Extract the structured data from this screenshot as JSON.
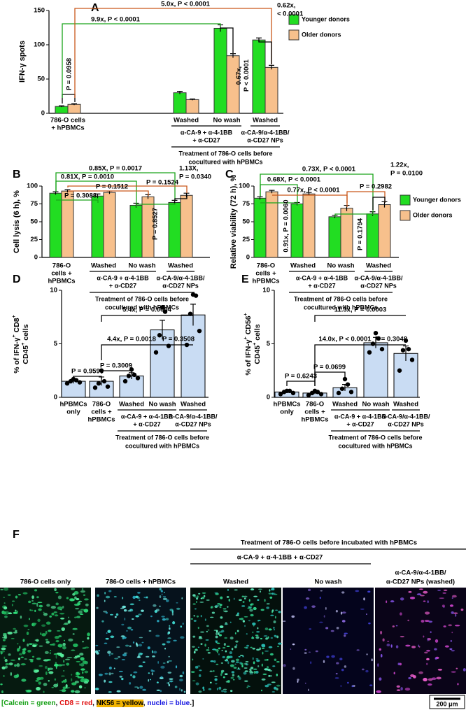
{
  "chart_data": [
    {
      "type": "bar",
      "panel": "A",
      "ylabel": "IFN-γ spots",
      "ylim": [
        0,
        150
      ],
      "yticks": [
        0,
        50,
        100,
        150
      ],
      "x_labels": [
        [
          "786-O cells",
          "+ hPBMCs"
        ],
        [
          "Washed"
        ],
        [
          "No wash"
        ],
        [
          "Washed"
        ]
      ],
      "groups": [
        [
          "α-CA-9 + α-4-1BB",
          "+ α-CD27"
        ],
        [
          "α-CA-9/α-4-1BB/",
          "α-CD27 NPs"
        ]
      ],
      "x_title": [
        "Treatment of 786-O cells before",
        "cocultured with hPBMCs"
      ],
      "legend": true,
      "series": [
        {
          "name": "Younger donors",
          "color": "#22dd22",
          "values": [
            10,
            30,
            124,
            107
          ],
          "errors": [
            1,
            2,
            5,
            3
          ]
        },
        {
          "name": "Older donors",
          "color": "#f7c08c",
          "values": [
            13,
            20,
            84,
            67
          ],
          "errors": [
            1,
            1,
            3,
            3
          ]
        }
      ],
      "annotations": [
        {
          "text": [
            "P = 0.0958"
          ],
          "color": "#000000"
        },
        {
          "text": [
            "9.9x, P < 0.0001"
          ],
          "color": "#1aa51a"
        },
        {
          "text": [
            "5.0x, P < 0.0001"
          ],
          "color": "#c9571a"
        },
        {
          "text": [
            "0.67x,",
            "P < 0.0001"
          ],
          "color": "#000000"
        },
        {
          "text": [
            "0.62x,",
            "< 0.0001"
          ],
          "color": "#000000"
        }
      ]
    },
    {
      "type": "bar",
      "panel": "B",
      "ylabel": "Cell lysis (6 h), %",
      "ylim": [
        0,
        100
      ],
      "yticks": [
        0,
        25,
        50,
        75,
        100
      ],
      "x_labels": [
        [
          "786-O",
          "cells +",
          "hPBMCs"
        ],
        [
          "Washed"
        ],
        [
          "No wash"
        ],
        [
          "Washed"
        ]
      ],
      "groups": [
        [
          "α-CA-9 + α-4-1BB",
          "+ α-CD27"
        ],
        [
          "α-CA-9/α-4-1BB/",
          "α-CD27 NPs"
        ]
      ],
      "x_title": [
        "Treatment of 786-O cells before",
        "cocultured with hPBMCs"
      ],
      "legend": false,
      "series": [
        {
          "color": "#22dd22",
          "values": [
            90,
            86,
            73,
            77
          ],
          "errors": [
            2,
            3,
            3,
            3
          ]
        },
        {
          "color": "#f7c08c",
          "values": [
            93,
            91,
            85,
            87
          ],
          "errors": [
            2,
            2,
            3,
            3
          ]
        }
      ],
      "annotations": [
        {
          "text": [
            "0.85X, P = 0.0017"
          ],
          "color": "#1aa51a"
        },
        {
          "text": [
            "0.81X, P = 0.0010"
          ],
          "color": "#1aa51a"
        },
        {
          "text": [
            "P = 0.1524"
          ],
          "color": "#c9571a"
        },
        {
          "text": [
            "P = 0.1512"
          ],
          "color": "#c9571a"
        },
        {
          "text": [
            "P = 0.3088"
          ],
          "color": "#1aa51a"
        },
        {
          "text": [
            "1.13X,",
            "P = 0.0340"
          ],
          "color": "#000000"
        },
        {
          "text": [
            "P = 0.8527"
          ],
          "color": "#1aa51a"
        }
      ]
    },
    {
      "type": "bar",
      "panel": "C",
      "ylabel": "Relative viability (72 h), %",
      "ylim": [
        0,
        100
      ],
      "yticks": [
        0,
        25,
        50,
        75,
        100
      ],
      "x_labels": [
        [
          "786-O",
          "cells +",
          "hPBMCs"
        ],
        [
          "Washed"
        ],
        [
          "No wash"
        ],
        [
          "Washed"
        ]
      ],
      "groups": [
        [
          "α-CA-9 + α-4-1BB",
          "+ α-CD27"
        ],
        [
          "α-CA-9/α-4-1BB/",
          "α-CD27 NPs"
        ]
      ],
      "x_title": [
        "Treatment of 786-O cells before",
        "cocultured with hPBMCs"
      ],
      "legend": true,
      "series": [
        {
          "name": "Younger donors",
          "color": "#22dd22",
          "values": [
            83,
            75,
            57,
            61
          ],
          "errors": [
            2,
            2,
            2,
            3
          ]
        },
        {
          "name": "Older donors",
          "color": "#f7c08c",
          "values": [
            92,
            89,
            69,
            74
          ],
          "errors": [
            2,
            2,
            4,
            4
          ]
        }
      ],
      "annotations": [
        {
          "text": [
            "0.73X, P < 0.0001"
          ],
          "color": "#1aa51a"
        },
        {
          "text": [
            "0.68X, P < 0.0001"
          ],
          "color": "#1aa51a"
        },
        {
          "text": [
            "0.77x, P < 0.0001"
          ],
          "color": "#c9571a"
        },
        {
          "text": [
            "P = 0.2982"
          ],
          "color": "#c9571a"
        },
        {
          "text": [
            "1.22x,",
            "P = 0.0100"
          ],
          "color": "#000000"
        },
        {
          "text": [
            "0.91x, P = 0.0060"
          ],
          "color": "#1aa51a"
        },
        {
          "text": [
            "P = 0.1794"
          ],
          "color": "#1aa51a"
        }
      ]
    },
    {
      "type": "bar",
      "panel": "D",
      "ylabel": [
        [
          "% of IFN-γ",
          "+",
          " CD8",
          "+"
        ],
        [
          "CD45",
          "+",
          " cells"
        ]
      ],
      "ylim": [
        0,
        10
      ],
      "yticks": [
        0,
        5,
        10
      ],
      "x_labels": [
        [
          "hPBMCs",
          "only"
        ],
        [
          "786-O",
          "cells +",
          "hPBMCs"
        ],
        [
          "Washed"
        ],
        [
          "No wash"
        ],
        [
          "Washed"
        ]
      ],
      "groups": [
        [
          "α-CA-9 + α-4-1BB",
          "+ α-CD27"
        ],
        [
          "α-CA-9/α-4-1BB/",
          "α-CD27 NPs"
        ]
      ],
      "x_title": [
        "Treatment of 786-O cells before",
        "cocultured with hPBMCs"
      ],
      "color": "#c9dcf3",
      "values": [
        1.5,
        1.5,
        2.0,
        6.3,
        7.7
      ],
      "errors": [
        0.2,
        0.4,
        0.3,
        0.9,
        1.0
      ],
      "points": [
        [
          1.3,
          1.4,
          1.5,
          1.6,
          1.7
        ],
        [
          0.9,
          1.0,
          1.3,
          1.5,
          2.5
        ],
        [
          1.5,
          1.8,
          2.0,
          2.1,
          2.6
        ],
        [
          4.2,
          4.8,
          5.8,
          8.0,
          8.4
        ],
        [
          4.9,
          6.2,
          7.8,
          9.5,
          9.6
        ]
      ],
      "annotations": [
        {
          "text": [
            "P = 0.9596"
          ],
          "color": "#000000"
        },
        {
          "text": [
            "P = 0.3009"
          ],
          "color": "#000000"
        },
        {
          "text": [
            "4.4x, P = 0.0018"
          ],
          "color": "#000000"
        },
        {
          "text": [
            "P = 0.3508"
          ],
          "color": "#000000"
        },
        {
          "text": [
            "5.4x, P = 0.0004"
          ],
          "color": "#000000"
        }
      ]
    },
    {
      "type": "bar",
      "panel": "E",
      "ylabel": [
        [
          "% of IFN-γ",
          "+",
          " CD56",
          "+"
        ],
        [
          "CD45",
          "+",
          " cells"
        ]
      ],
      "ylim": [
        0,
        10
      ],
      "yticks": [
        0,
        5,
        10
      ],
      "x_labels": [
        [
          "hPBMCs",
          "only"
        ],
        [
          "786-O",
          "cells +",
          "hPBMCs"
        ],
        [
          "Washed"
        ],
        [
          "No wash"
        ],
        [
          "Washed"
        ]
      ],
      "groups": [
        [
          "α-CA-9 + α-4-1BB",
          "+ α-CD27"
        ],
        [
          "α-CA-9/α-4-1BB/",
          "α-CD27 NPs"
        ]
      ],
      "x_title": [
        "Treatment of 786-O cells before",
        "cocultured with hPBMCs"
      ],
      "color": "#c9dcf3",
      "values": [
        0.5,
        0.4,
        0.9,
        5.1,
        4.1
      ],
      "errors": [
        0.1,
        0.1,
        0.3,
        0.5,
        0.7
      ],
      "points": [
        [
          0.3,
          0.4,
          0.5,
          0.6,
          0.6
        ],
        [
          0.2,
          0.3,
          0.4,
          0.5,
          0.6
        ],
        [
          0.4,
          0.5,
          0.8,
          1.2,
          1.7
        ],
        [
          4.2,
          4.5,
          5.0,
          5.5,
          6.0
        ],
        [
          2.5,
          3.5,
          4.4,
          4.5,
          5.3
        ]
      ],
      "annotations": [
        {
          "text": [
            "P = 0.6243"
          ],
          "color": "#000000"
        },
        {
          "text": [
            "P = 0.0699"
          ],
          "color": "#000000"
        },
        {
          "text": [
            "14.0x, P < 0.0001"
          ],
          "color": "#000000"
        },
        {
          "text": [
            "P = 0.3048"
          ],
          "color": "#000000"
        },
        {
          "text": [
            "11.3x, P = 0.0003"
          ],
          "color": "#000000"
        }
      ]
    }
  ],
  "panel_f": {
    "letter": "F",
    "header": "Treatment of 786-O cells before incubated with hPBMCs",
    "subheader": "α-CA-9 + α-4-1BB + α-CD27",
    "tiles": [
      [
        "786-O cells only"
      ],
      [
        "786-O cells + hPBMCs"
      ],
      [
        "Washed"
      ],
      [
        "No wash"
      ],
      [
        "α-CA-9/α-4-1BB/",
        "α-CD27 NPs (washed)"
      ]
    ],
    "stain_legend": [
      {
        "text": "[Calcein = green",
        "color": "#16a016"
      },
      {
        "text": ", ",
        "color": "#000000"
      },
      {
        "text": "CD8 = red",
        "color": "#e01010"
      },
      {
        "text": ", ",
        "color": "#000000"
      },
      {
        "text": "NK56 = yellow",
        "color": "#000000",
        "background": "#f2b400"
      },
      {
        "text": ", ",
        "color": "#000000"
      },
      {
        "text": "nuclei = blue",
        "color": "#1010e0"
      },
      {
        "text": ".]",
        "color": "#000000"
      }
    ],
    "scale_bar": "200 μm"
  }
}
